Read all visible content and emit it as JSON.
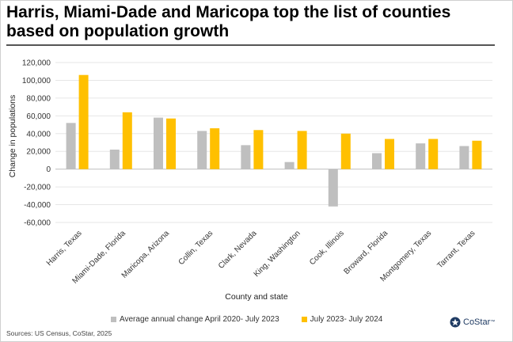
{
  "title": "Harris, Miami-Dade and Maricopa top the list of counties based on population growth",
  "source": "Sources: US Census, CoStar, 2025",
  "logo_text": "CoStar",
  "logo_trademark": "™",
  "chart_data": {
    "type": "bar",
    "xlabel": "County and state",
    "ylabel": "Change in populations",
    "ylim": [
      -60000,
      120000
    ],
    "yticks": [
      -60000,
      -40000,
      -20000,
      0,
      20000,
      40000,
      60000,
      80000,
      100000,
      120000
    ],
    "ytick_labels": [
      "-60,000",
      "-40,000",
      "-20,000",
      "0",
      "20,000",
      "40,000",
      "60,000",
      "80,000",
      "100,000",
      "120,000"
    ],
    "grid": true,
    "legend": "bottom",
    "categories": [
      "Harris, Texas",
      "Miami-Dade, Florida",
      "Maricopa, Arizona",
      "Collin, Texas",
      "Clark, Nevada",
      "King, Washington",
      "Cook, Illinois",
      "Broward, Florida",
      "Montgomery, Texas",
      "Tarrant, Texas"
    ],
    "series": [
      {
        "name": "Average annual change April 2020- July 2023",
        "color": "#bfbfbf",
        "values": [
          52000,
          22000,
          58000,
          43000,
          27000,
          8000,
          -42000,
          18000,
          29000,
          26000
        ]
      },
      {
        "name": "July 2023- July 2024",
        "color": "#ffc000",
        "values": [
          106000,
          64000,
          57000,
          46000,
          44000,
          43000,
          40000,
          34000,
          34000,
          32000
        ]
      }
    ]
  }
}
